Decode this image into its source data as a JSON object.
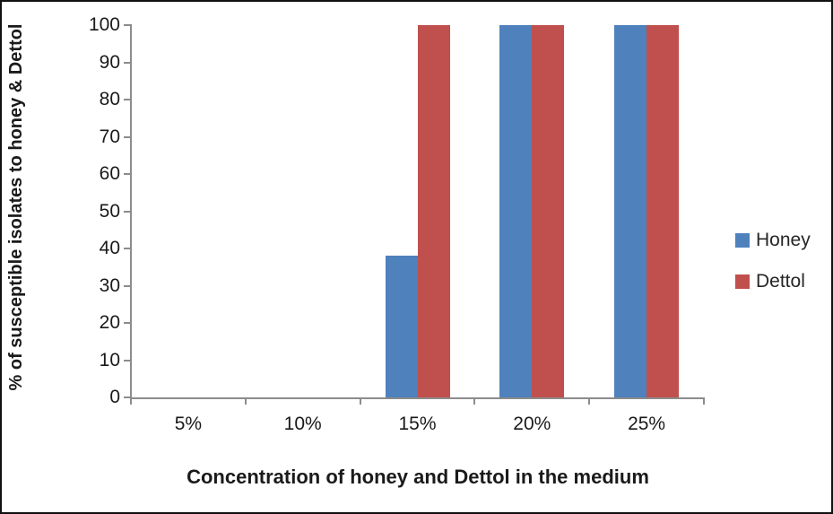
{
  "figure": {
    "background": "#ffffff",
    "frame_color": "#111111"
  },
  "chart_data": {
    "type": "bar",
    "categories": [
      "5%",
      "10%",
      "15%",
      "20%",
      "25%"
    ],
    "series": [
      {
        "name": "Honey",
        "color": "#4F81BD",
        "values": [
          0,
          0,
          38,
          100,
          100
        ]
      },
      {
        "name": "Dettol",
        "color": "#C0504D",
        "values": [
          0,
          0,
          100,
          100,
          100
        ]
      }
    ],
    "title": "",
    "xlabel": "Concentration of honey and Dettol in the medium",
    "ylabel": "% of susceptible isolates to honey & Dettol",
    "ylim": [
      0,
      100
    ],
    "ytick_step": 10,
    "ytick_labels": [
      "0",
      "10",
      "20",
      "30",
      "40",
      "50",
      "60",
      "70",
      "80",
      "90",
      "100"
    ],
    "grid": false,
    "legend_position": "right",
    "legend_entries": [
      "Honey",
      "Dettol"
    ],
    "axis_color": "#8c8c8c",
    "text_color": "#1a1a1a"
  }
}
